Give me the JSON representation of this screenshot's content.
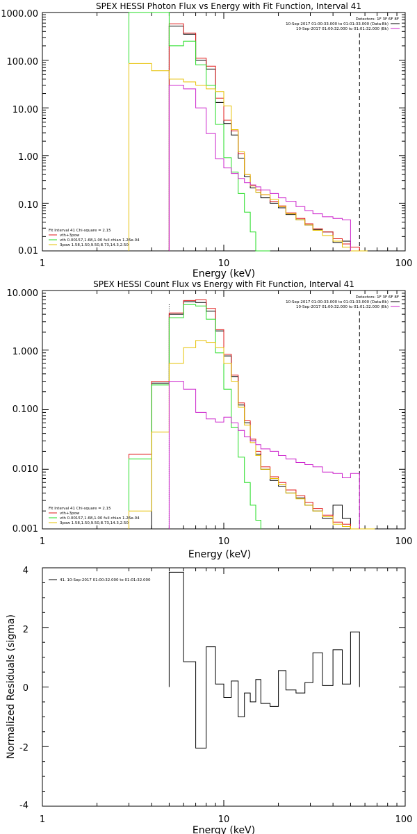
{
  "chart_data": [
    {
      "type": "line",
      "title": "SPEX HESSI Photon Flux vs Energy with Fit Function, Interval 41",
      "xlabel": "Energy (keV)",
      "ylabel": "",
      "xlim": [
        1,
        100
      ],
      "ylim": [
        0.01,
        1000
      ],
      "xscale": "log",
      "yscale": "log",
      "xticks": [
        "1",
        "10",
        "100"
      ],
      "yticks": [
        "0.01",
        "0.10",
        "1.00",
        "10.00",
        "100.00",
        "1000.00"
      ],
      "fit_start": 5.0,
      "fit_end": 56.0,
      "legend": {
        "detectors": "Detectors: 1F 3F 6F 8F",
        "intervals": [
          "10-Sep-2017 01:00:33.000 to 01:01:33.000 (Data-Bk)",
          "10-Sep-2017 01:00:32.000 to 01:01:32.000 (Bk)"
        ],
        "fit": [
          "Fit Interval  41    Chi-square = 2.15",
          "vth+3pow",
          "vth 0.00157,1.68,1.00  full chian 1.26e-04",
          "3pow 1.58,1.50,9.50,8.73,14.3,2.50"
        ]
      },
      "x_edges": [
        3.0,
        4.0,
        5.0,
        6.0,
        7.0,
        8.0,
        9.0,
        10.0,
        11.0,
        12.0,
        13.0,
        14.0,
        15.0,
        16.0,
        18.0,
        20.0,
        22.0,
        25.0,
        28.0,
        31.0,
        35.0,
        40.0,
        45.0,
        50.0,
        56.0,
        62.0
      ],
      "series": [
        {
          "name": "Data-Bk",
          "color": "#000000",
          "values": [
            null,
            null,
            520,
            350,
            100,
            65,
            13,
            4.7,
            2.7,
            0.88,
            0.36,
            0.21,
            0.17,
            0.13,
            0.1,
            0.08,
            0.058,
            0.045,
            0.035,
            0.028,
            0.025,
            0.015,
            0.016,
            null,
            null
          ]
        },
        {
          "name": "vth+3pow",
          "color": "#e01818",
          "values": [
            null,
            null,
            580,
            370,
            110,
            75,
            16,
            5.5,
            3.3,
            1.1,
            0.4,
            0.24,
            0.19,
            0.15,
            0.11,
            0.088,
            0.063,
            0.048,
            0.037,
            0.029,
            0.025,
            0.018,
            0.014,
            0.012,
            null
          ]
        },
        {
          "name": "vth",
          "color": "#22dd22",
          "values": [
            1500,
            1500,
            200,
            250,
            80,
            30,
            4.5,
            0.9,
            0.45,
            0.16,
            0.065,
            0.025,
            0.01,
            0.004,
            null,
            null,
            null,
            null,
            null,
            null,
            null,
            null,
            null,
            null,
            null
          ]
        },
        {
          "name": "3pow",
          "color": "#e6c000",
          "values": [
            85,
            60,
            40,
            35,
            30,
            25,
            22,
            11,
            3.5,
            1.2,
            0.4,
            0.23,
            0.17,
            0.15,
            0.12,
            0.085,
            0.06,
            0.045,
            0.035,
            0.027,
            0.021,
            0.016,
            0.012,
            0.01,
            0.008
          ]
        },
        {
          "name": "Bk",
          "color": "#cc22cc",
          "values": [
            null,
            null,
            30,
            25,
            10,
            2.9,
            0.85,
            0.55,
            0.42,
            0.33,
            0.27,
            0.24,
            0.22,
            0.19,
            0.16,
            0.13,
            0.11,
            0.085,
            0.07,
            0.06,
            0.052,
            0.048,
            0.045,
            null,
            null
          ]
        }
      ]
    },
    {
      "type": "line",
      "title": "SPEX HESSI Count Flux vs Energy with Fit Function, Interval 41",
      "xlabel": "Energy (keV)",
      "ylabel": "",
      "xlim": [
        1,
        100
      ],
      "ylim": [
        0.001,
        10
      ],
      "xscale": "log",
      "yscale": "log",
      "xticks": [
        "1",
        "10",
        "100"
      ],
      "yticks": [
        "0.001",
        "0.010",
        "0.100",
        "1.000",
        "10.000"
      ],
      "fit_start": 5.0,
      "fit_end": 56.0,
      "legend": {
        "detectors": "Detectors: 1F 3F 6F 8F",
        "intervals": [
          "10-Sep-2017 01:00:33.000 to 01:01:33.000 (Data-Bk)",
          "10-Sep-2017 01:00:32.000 to 01:01:32.000 (Bk)"
        ],
        "fit": [
          "Fit Interval  41    Chi-square = 2.15",
          "vth+3pow",
          "vth 0.00157,1.68,1.00  full chian 1.26e-04",
          "3pow 1.58,1.50,9.50,8.73,14.3,2.50"
        ]
      },
      "x_edges": [
        3.0,
        4.0,
        5.0,
        6.0,
        7.0,
        8.0,
        9.0,
        10.0,
        11.0,
        12.0,
        13.0,
        14.0,
        15.0,
        16.0,
        18.0,
        20.0,
        22.0,
        25.0,
        28.0,
        31.0,
        35.0,
        40.0,
        45.0,
        50.0,
        56.0,
        62.0,
        68.0
      ],
      "series": [
        {
          "name": "Data-Bk",
          "color": "#000000",
          "values": [
            null,
            0.28,
            4.0,
            6.5,
            6.3,
            4.5,
            2.1,
            0.8,
            0.36,
            0.12,
            0.06,
            0.03,
            0.018,
            0.01,
            0.0065,
            0.0052,
            0.004,
            0.0033,
            0.0025,
            0.002,
            0.0015,
            0.0025,
            0.0015,
            null,
            null,
            null
          ]
        },
        {
          "name": "vth+3pow",
          "color": "#e01818",
          "values": [
            0.018,
            0.3,
            4.2,
            6.8,
            7.0,
            5.0,
            2.2,
            0.85,
            0.38,
            0.13,
            0.065,
            0.032,
            0.02,
            0.011,
            0.0075,
            0.006,
            0.0045,
            0.0036,
            0.0028,
            0.0022,
            0.0017,
            0.0013,
            0.0012,
            null,
            null,
            null
          ]
        },
        {
          "name": "vth",
          "color": "#22dd22",
          "values": [
            0.015,
            0.26,
            3.5,
            5.8,
            5.5,
            3.3,
            0.9,
            0.22,
            0.05,
            0.016,
            0.006,
            0.0025,
            0.0014,
            null,
            null,
            null,
            null,
            null,
            null,
            null,
            null,
            null,
            null,
            null,
            null,
            null
          ]
        },
        {
          "name": "3pow",
          "color": "#e6c000",
          "values": [
            0.002,
            0.042,
            0.6,
            1.1,
            1.45,
            1.35,
            1.1,
            0.6,
            0.3,
            0.11,
            0.055,
            0.028,
            0.017,
            0.01,
            0.007,
            0.0055,
            0.004,
            0.0032,
            0.0025,
            0.002,
            0.0016,
            0.0012,
            0.0011,
            0.001,
            0.001,
            0.001
          ]
        },
        {
          "name": "Bk",
          "color": "#cc22cc",
          "values": [
            null,
            null,
            0.3,
            0.22,
            0.09,
            0.07,
            0.062,
            0.075,
            0.06,
            0.045,
            0.035,
            0.03,
            0.026,
            0.022,
            0.02,
            0.017,
            0.015,
            0.013,
            0.012,
            0.011,
            0.009,
            0.0085,
            0.0072,
            0.0085,
            null,
            null
          ]
        }
      ]
    },
    {
      "type": "line",
      "title": "",
      "xlabel": "Energy (keV)",
      "ylabel": "Normalized Residuals (sigma)",
      "xlim": [
        1,
        100
      ],
      "ylim": [
        -4,
        4
      ],
      "xscale": "log",
      "yscale": "linear",
      "xticks": [
        "1",
        "10",
        "100"
      ],
      "yticks": [
        "-4",
        "-2",
        "0",
        "2",
        "4"
      ],
      "legend": {
        "entry": "41. 10-Sep-2017 01:00:32.000 to 01:01:32.000"
      },
      "x_edges": [
        5.0,
        6.0,
        7.0,
        8.0,
        9.0,
        10.0,
        11.0,
        12.0,
        13.0,
        14.0,
        15.0,
        16.0,
        18.0,
        20.0,
        22.0,
        25.0,
        28.0,
        31.0,
        35.0,
        40.0,
        45.0,
        50.0,
        56.0
      ],
      "series": [
        {
          "name": "41. 10-Sep-2017 01:00:32.000 to 01:01:32.000",
          "color": "#000000",
          "values": [
            3.85,
            0.85,
            -2.05,
            1.35,
            0.1,
            -0.35,
            0.2,
            -1.0,
            -0.2,
            -0.5,
            0.25,
            -0.55,
            -0.65,
            0.55,
            -0.1,
            -0.2,
            0.15,
            1.15,
            0.05,
            1.25,
            0.1,
            1.85
          ]
        }
      ]
    }
  ]
}
